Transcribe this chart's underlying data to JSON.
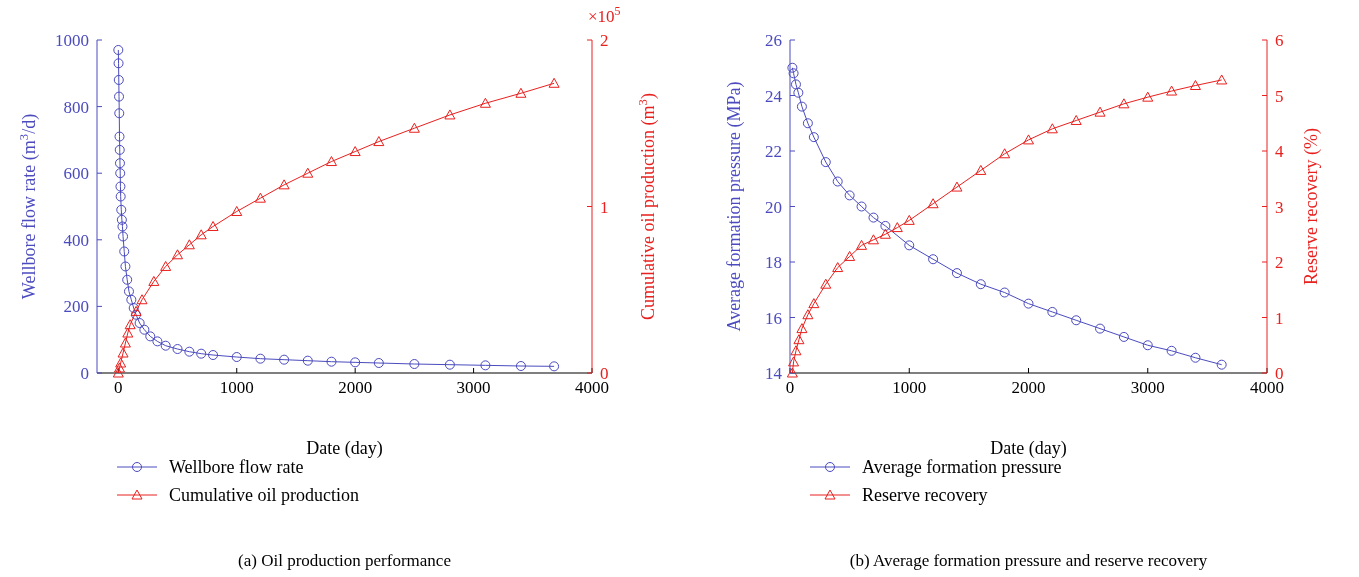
{
  "chart_data": [
    {
      "type": "line",
      "title": "(a) Oil production performance",
      "xlabel": "Date (day)",
      "ylabel": "Wellbore flow rate (m$^{3}$/d)",
      "y2label": "Cumulative oil production (m$^{3}$)",
      "annotations": [
        "×10$^{5}$"
      ],
      "xlim": [
        -180,
        4000
      ],
      "xticks": [
        0,
        1000,
        2000,
        3000,
        4000
      ],
      "ylim": [
        0,
        1000
      ],
      "yticks": [
        0,
        200,
        400,
        600,
        800,
        1000
      ],
      "y2lim": [
        0,
        2
      ],
      "y2ticks": [
        0,
        1,
        2
      ],
      "legend": "bottom",
      "grid": false,
      "line_style": "solid",
      "series": [
        {
          "name": "Wellbore flow rate",
          "color": "#4b4bbf",
          "marker": "circle",
          "axis": "y",
          "x": [
            0,
            2,
            4,
            6,
            8,
            10,
            12,
            14,
            16,
            18,
            20,
            25,
            30,
            35,
            40,
            50,
            60,
            75,
            90,
            110,
            130,
            150,
            180,
            220,
            270,
            330,
            400,
            500,
            600,
            700,
            800,
            1000,
            1200,
            1400,
            1600,
            1800,
            2000,
            2200,
            2500,
            2800,
            3100,
            3400,
            3680
          ],
          "values": [
            970,
            930,
            880,
            830,
            780,
            710,
            670,
            630,
            600,
            560,
            530,
            490,
            460,
            440,
            410,
            365,
            320,
            280,
            245,
            220,
            195,
            175,
            150,
            130,
            110,
            95,
            82,
            72,
            64,
            58,
            54,
            48,
            43,
            40,
            37,
            34,
            32,
            30,
            27,
            25,
            23,
            21,
            20
          ]
        },
        {
          "name": "Cumulative oil production",
          "color": "#e8201e",
          "marker": "triangle",
          "axis": "y2",
          "x": [
            0,
            10,
            20,
            40,
            60,
            80,
            100,
            150,
            200,
            300,
            400,
            500,
            600,
            700,
            800,
            1000,
            1200,
            1400,
            1600,
            1800,
            2000,
            2200,
            2500,
            2800,
            3100,
            3400,
            3680
          ],
          "values": [
            0,
            0.03,
            0.06,
            0.12,
            0.18,
            0.24,
            0.29,
            0.37,
            0.44,
            0.55,
            0.64,
            0.71,
            0.77,
            0.83,
            0.88,
            0.97,
            1.05,
            1.13,
            1.2,
            1.27,
            1.33,
            1.39,
            1.47,
            1.55,
            1.62,
            1.68,
            1.74
          ]
        }
      ]
    },
    {
      "type": "line",
      "title": "(b) Average formation pressure and reserve recovery",
      "xlabel": "Date (day)",
      "ylabel": "Average formation pressure (MPa)",
      "y2label": "Reserve recovery (%)",
      "xlim": [
        0,
        4000
      ],
      "xticks": [
        0,
        1000,
        2000,
        3000,
        4000
      ],
      "ylim": [
        14,
        26
      ],
      "yticks": [
        14,
        16,
        18,
        20,
        22,
        24,
        26
      ],
      "y2lim": [
        0,
        6
      ],
      "y2ticks": [
        0,
        1,
        2,
        3,
        4,
        5,
        6
      ],
      "legend": "bottom",
      "grid": false,
      "line_style": "solid",
      "series": [
        {
          "name": "Average formation pressure",
          "color": "#4b4bbf",
          "marker": "circle",
          "axis": "y",
          "x": [
            20,
            30,
            50,
            70,
            100,
            150,
            200,
            300,
            400,
            500,
            600,
            700,
            800,
            1000,
            1200,
            1400,
            1600,
            1800,
            2000,
            2200,
            2400,
            2600,
            2800,
            3000,
            3200,
            3400,
            3620
          ],
          "values": [
            25,
            24.8,
            24.4,
            24.1,
            23.6,
            23.0,
            22.5,
            21.6,
            20.9,
            20.4,
            20.0,
            19.6,
            19.3,
            18.6,
            18.1,
            17.6,
            17.2,
            16.9,
            16.5,
            16.2,
            15.9,
            15.6,
            15.3,
            15.0,
            14.8,
            14.55,
            14.3
          ]
        },
        {
          "name": "Reserve recovery",
          "color": "#e8201e",
          "marker": "triangle",
          "axis": "y2",
          "x": [
            20,
            30,
            50,
            75,
            100,
            150,
            200,
            300,
            400,
            500,
            600,
            700,
            800,
            900,
            1000,
            1200,
            1400,
            1600,
            1800,
            2000,
            2200,
            2400,
            2600,
            2800,
            3000,
            3200,
            3400,
            3620
          ],
          "values": [
            0,
            0.2,
            0.4,
            0.6,
            0.8,
            1.05,
            1.25,
            1.6,
            1.9,
            2.1,
            2.3,
            2.4,
            2.5,
            2.62,
            2.75,
            3.05,
            3.35,
            3.65,
            3.95,
            4.2,
            4.4,
            4.55,
            4.7,
            4.85,
            4.97,
            5.08,
            5.18,
            5.28
          ]
        }
      ]
    }
  ]
}
